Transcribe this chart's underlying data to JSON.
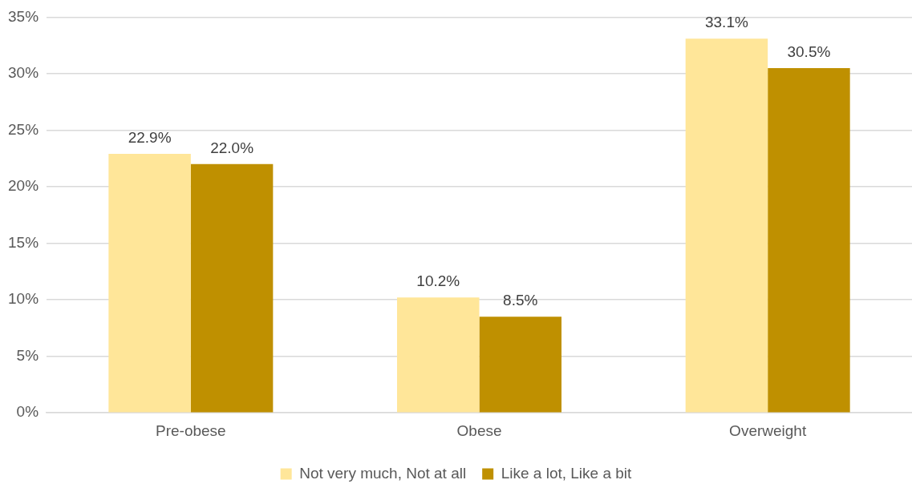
{
  "chart_data": {
    "type": "bar",
    "categories": [
      "Pre-obese",
      "Obese",
      "Overweight"
    ],
    "series": [
      {
        "name": "Not very much, Not at all",
        "color": "#ffe699",
        "values": [
          22.9,
          10.2,
          33.1
        ],
        "value_labels": [
          "22.9%",
          "10.2%",
          "33.1%"
        ]
      },
      {
        "name": "Like a lot, Like a bit",
        "color": "#bf9000",
        "values": [
          22.0,
          8.5,
          30.5
        ],
        "value_labels": [
          "22.0%",
          "8.5%",
          "30.5%"
        ]
      }
    ],
    "ylim": [
      0,
      35
    ],
    "yticks": [
      {
        "value": 0,
        "label": "0%"
      },
      {
        "value": 5,
        "label": "5%"
      },
      {
        "value": 10,
        "label": "10%"
      },
      {
        "value": 15,
        "label": "15%"
      },
      {
        "value": 20,
        "label": "20%"
      },
      {
        "value": 25,
        "label": "25%"
      },
      {
        "value": 30,
        "label": "30%"
      },
      {
        "value": 35,
        "label": "35%"
      }
    ],
    "grid": "y",
    "legend": "bottom"
  }
}
